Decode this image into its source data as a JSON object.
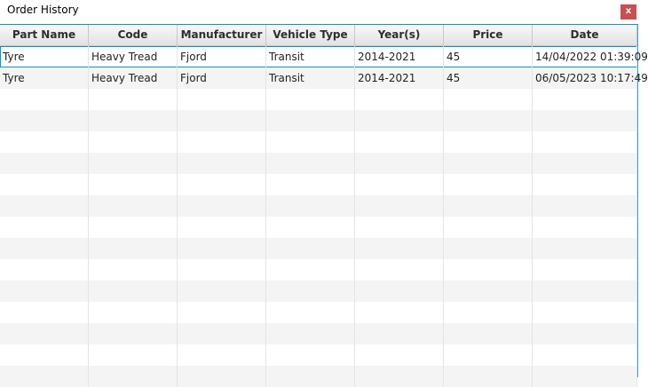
{
  "window": {
    "title": "Order History",
    "close_label": "x",
    "close_color": "#c75050",
    "accent_border": "#0a94c8"
  },
  "table": {
    "columns": [
      "Part Name",
      "Code",
      "Manufacturer",
      "Vehicle Type",
      "Year(s)",
      "Price",
      "Date"
    ],
    "rows": [
      [
        "Tyre",
        "Heavy Tread",
        "Fjord",
        "Transit",
        "2014-2021",
        "45",
        "14/04/2022 01:39:09"
      ],
      [
        "Tyre",
        "Heavy Tread",
        "Fjord",
        "Transit",
        "2014-2021",
        "45",
        "06/05/2023 10:17:49"
      ]
    ],
    "selected_row": 0
  }
}
